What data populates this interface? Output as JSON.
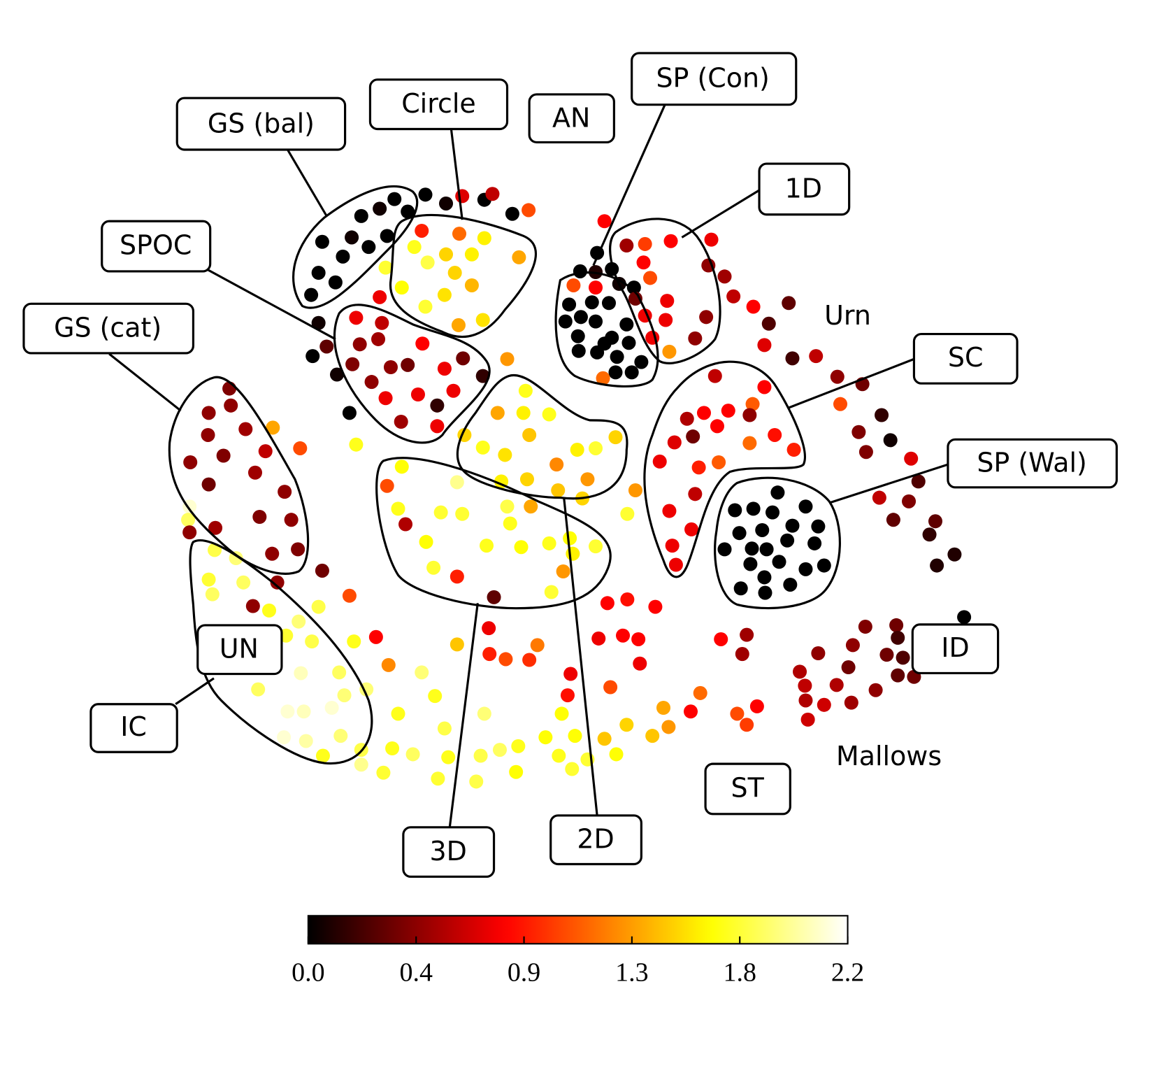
{
  "chart_data": {
    "type": "scatter",
    "colormap": "hot",
    "xlim": [
      20,
      135
    ],
    "ylim": [
      112,
      22
    ],
    "annotations": [
      "GS (bal)",
      "Circle",
      "AN",
      "SP (Con)",
      "1D",
      "SPOC",
      "GS (cat)",
      "Urn",
      "SC",
      "SP (Wal)",
      "ID",
      "UN",
      "IC",
      "Mallows",
      "ST",
      "3D",
      "2D"
    ],
    "colorbar": {
      "lim": [
        0,
        2.2
      ],
      "ticks": [
        {
          "value": 0,
          "label": "0.0"
        },
        {
          "value": 0.44,
          "label": "0.4"
        },
        {
          "value": 0.88,
          "label": "0.9"
        },
        {
          "value": 1.32,
          "label": "1.3"
        },
        {
          "value": 1.76,
          "label": "1.8"
        },
        2.2
      ]
    },
    "x": [
      53.5,
      51.5,
      49.0,
      55.3,
      52.5,
      47.7,
      43.7,
      50.0,
      46.5,
      43.2,
      45.5,
      42.2,
      57.7,
      60.5,
      65.7,
      69.5,
      62.7,
      66.8,
      71.7,
      57.2,
      62.3,
      65.7,
      56.2,
      60.5,
      64.0,
      70.4,
      58.0,
      61.7,
      54.5,
      60.3,
      64.0,
      57.7,
      62.2,
      65.5,
      52.3,
      51.5,
      43.2,
      44.3,
      42.4,
      45.7,
      47.4,
      48.3,
      51.8,
      48.8,
      51.3,
      57.3,
      47.8,
      53.0,
      55.3,
      60.3,
      62.8,
      50.4,
      52.3,
      56.7,
      59.3,
      61.5,
      54.4,
      59.3,
      65.5,
      68.8,
      71.3,
      67.5,
      71.0,
      74.5,
      63.0,
      65.5,
      68.5,
      71.8,
      78.3,
      80.8,
      83.5,
      75.5,
      79.7,
      71.5,
      75.7,
      79.0,
      68.0,
      48.3,
      54.5,
      62.0,
      52.5,
      54.0,
      59.8,
      62.7,
      68.8,
      72.0,
      55.0,
      69.2,
      57.8,
      66.0,
      70.7,
      74.5,
      77.3,
      80.8,
      77.7,
      58.8,
      62.0,
      67.0,
      74.8,
      76.4,
      86.2,
      85.1,
      31.1,
      31.3,
      28.3,
      37.0,
      33.3,
      28.2,
      40.7,
      30.3,
      25.8,
      36.0,
      34.6,
      28.3,
      38.6,
      35.2,
      39.5,
      29.2,
      36.9,
      40.4,
      25.7,
      25.5,
      25.7,
      43.7,
      37.6,
      29.1,
      32.0,
      28.3,
      33.0,
      28.8,
      36.5,
      34.3,
      38.8,
      40.5,
      43.2,
      47.4,
      42.3,
      48.0,
      51.0,
      40.8,
      46.0,
      46.7,
      49.7,
      35.0,
      39.0,
      41.2,
      45.0,
      38.5,
      41.5,
      46.2,
      43.8,
      49.0,
      49.0,
      52.7,
      57.2,
      59.0,
      54.0,
      62.0,
      65.7,
      60.3,
      53.2,
      56.0,
      52.0,
      59.4,
      60.8,
      64.6,
      65.2,
      67.8,
      70.3,
      70.0,
      74.0,
      75.8,
      77.6,
      78.0,
      79.7,
      82.0,
      83.6,
      85.0,
      88.5,
      76.2,
      90.0,
      90.7,
      95.0,
      93.7,
      100.0,
      102.7,
      101.3,
      66.3,
      66.4,
      68.6,
      71.8,
      72.9,
      77.4,
      77.0,
      82.8,
      81.2,
      84.5,
      86.6,
      86.8,
      82.4,
      85.1,
      88.9,
      97.8,
      101.3,
      100.7,
      108.5,
      111.0,
      109.2,
      109.3,
      109.6,
      111.8,
      113.5,
      115.7,
      115.1,
      115.5,
      117.4,
      118.8,
      120.3,
      121.6,
      121.8,
      122.5,
      121.8,
      124.0,
      130.8,
      81.0,
      78.7,
      80.8,
      83.0,
      77.8,
      80.8,
      84.0,
      86.0,
      77.2,
      80.3,
      82.6,
      78.8,
      76.7,
      80.8,
      85.0,
      83.0,
      78.4,
      82.0,
      85.3,
      78.5,
      81.0,
      83.7,
      87.0,
      83.5,
      85.7,
      81.8,
      82.0,
      85.0,
      87.5,
      91.0,
      87.3,
      88.2,
      86.2,
      90.5,
      87.5,
      90.3,
      88.5,
      90.8,
      94.3,
      95.8,
      96.1,
      96.5,
      98.3,
      99.5,
      102.2,
      104.3,
      107.0,
      103.7,
      107.5,
      110.7,
      113.6,
      117.0,
      114.0,
      119.6,
      116.5,
      120.8,
      117.5,
      123.6,
      124.6,
      119.3,
      123.3,
      121.2,
      126.9,
      126.1,
      129.5,
      127.1,
      97.0,
      103.7,
      102.1,
      98.8,
      95.5,
      101.7,
      93.2,
      97.3,
      105.1,
      101.7,
      94.0,
      91.5,
      107.7,
      94.8,
      97.5,
      89.5,
      94.3,
      90.8,
      93.8,
      91.2,
      91.7,
      105.5,
      99.7,
      102.2,
      104.8,
      109.3,
      107.5,
      100.3,
      103.4,
      111.0,
      106.8,
      98.3,
      102.0,
      104.0,
      110.5,
      101.8,
      105.7,
      109.3,
      111.8,
      100.5,
      103.7,
      103.8,
      107.2
    ],
    "y": [
      27.0,
      28.3,
      29.3,
      28.7,
      32.0,
      32.2,
      32.8,
      33.5,
      34.8,
      37.0,
      38.3,
      40.0,
      26.4,
      27.6,
      27.1,
      29.0,
      26.6,
      26.3,
      28.5,
      31.3,
      31.7,
      32.3,
      33.5,
      34.5,
      34.5,
      34.9,
      35.6,
      37.0,
      39.0,
      40.0,
      38.7,
      41.6,
      44.1,
      43.4,
      36.3,
      40.3,
      43.8,
      47.0,
      48.3,
      50.8,
      56.0,
      43.1,
      43.8,
      46.7,
      46.0,
      46.6,
      49.4,
      49.8,
      49.5,
      50.0,
      48.6,
      51.8,
      54.0,
      53.5,
      55.0,
      53.0,
      57.2,
      57.8,
      51.0,
      48.7,
      53.0,
      56.0,
      56.0,
      56.2,
      59.0,
      60.7,
      61.7,
      59.0,
      61.0,
      60.8,
      59.3,
      63.0,
      65.0,
      65.0,
      66.5,
      67.6,
      65.3,
      60.3,
      63.3,
      65.4,
      65.9,
      69.0,
      69.5,
      69.7,
      68.7,
      68.7,
      71.1,
      71.0,
      73.5,
      74.0,
      74.2,
      73.7,
      73.0,
      74.1,
      75.1,
      77.0,
      78.2,
      81.0,
      80.3,
      77.5,
      66.5,
      69.7,
      52.7,
      55.0,
      56.0,
      58.0,
      58.2,
      59.0,
      60.8,
      61.8,
      62.7,
      61.2,
      64.1,
      65.7,
      66.7,
      70.1,
      70.5,
      71.6,
      75.1,
      74.5,
      68.7,
      70.5,
      72.2,
      77.4,
      79.0,
      74.6,
      75.7,
      78.6,
      79.0,
      80.6,
      82.8,
      82.2,
      86.2,
      84.3,
      82.3,
      80.8,
      87.0,
      87.0,
      86.4,
      91.3,
      91.2,
      94.3,
      93.5,
      93.5,
      96.5,
      96.5,
      96.0,
      100.0,
      100.5,
      99.8,
      102.5,
      101.7,
      103.7,
      90.2,
      91.2,
      94.4,
      96.8,
      87.4,
      96.8,
      98.8,
      101.5,
      102.3,
      104.8,
      105.6,
      102.7,
      106.0,
      102.5,
      101.7,
      101.2,
      104.7,
      100.0,
      102.5,
      104.3,
      99.8,
      103.0,
      100.2,
      102.3,
      98.3,
      99.8,
      96.8,
      96.0,
      98.6,
      94.0,
      96.5,
      96.8,
      95.8,
      98.3,
      85.2,
      88.7,
      89.4,
      89.5,
      87.5,
      91.4,
      94.3,
      93.2,
      86.6,
      86.2,
      86.7,
      90.0,
      81.8,
      81.3,
      82.3,
      86.7,
      86.1,
      88.7,
      91.1,
      88.6,
      93.0,
      95.0,
      97.6,
      95.6,
      92.9,
      87.5,
      90.5,
      95.3,
      85.0,
      93.6,
      88.8,
      84.8,
      86.5,
      89.2,
      91.6,
      91.8,
      83.7,
      34.3,
      36.8,
      36.9,
      36.5,
      38.7,
      39.0,
      38.5,
      39.0,
      41.3,
      41.0,
      41.1,
      43.0,
      43.6,
      43.6,
      44.0,
      45.8,
      45.6,
      46.6,
      46.5,
      47.6,
      47.8,
      48.4,
      49.1,
      50.5,
      50.5,
      51.3,
      30.0,
      33.3,
      33.1,
      32.7,
      35.6,
      37.7,
      40.5,
      40.8,
      42.8,
      43.4,
      45.8,
      47.7,
      45.9,
      43.0,
      36.0,
      32.5,
      37.5,
      40.2,
      41.6,
      43.9,
      41.1,
      46.8,
      48.6,
      48.3,
      51.1,
      52.1,
      54.8,
      56.3,
      58.6,
      59.7,
      61.3,
      62.2,
      65.3,
      67.5,
      68.0,
      70.5,
      70.7,
      72.5,
      75.2,
      76.7,
      51.0,
      52.5,
      54.8,
      55.7,
      56.0,
      56.3,
      56.8,
      57.8,
      59.0,
      60.1,
      59.2,
      60.0,
      61.0,
      63.4,
      62.7,
      62.6,
      67.0,
      69.3,
      71.8,
      74.0,
      76.6,
      66.8,
      69.2,
      69.0,
      69.5,
      68.7,
      71.3,
      72.3,
      71.9,
      71.4,
      73.3,
      74.5,
      74.4,
      74.5,
      73.7,
      76.5,
      76.2,
      77.2,
      76.7,
      79.8,
      78.3,
      80.4,
      79.3
    ],
    "values": [
      0,
      0.05,
      0,
      0,
      0,
      0.05,
      0,
      0,
      0,
      0,
      0,
      0,
      0,
      0.05,
      0,
      0,
      0.7,
      0.6,
      1.05,
      0.9,
      1.15,
      1.6,
      1.7,
      1.5,
      1.6,
      1.35,
      1.8,
      1.5,
      1.65,
      1.55,
      1.4,
      1.75,
      1.35,
      1.55,
      1.75,
      0.75,
      0.05,
      0.3,
      0,
      0.05,
      0,
      0.75,
      0.6,
      0.45,
      0.5,
      0.8,
      0.4,
      0.45,
      0.35,
      0.75,
      0.35,
      0.45,
      0.75,
      0.75,
      0.15,
      0.75,
      0.5,
      0.75,
      0.15,
      1.3,
      1.7,
      1.35,
      1.6,
      1.7,
      1.5,
      1.7,
      1.55,
      1.45,
      1.6,
      1.75,
      1.5,
      1.25,
      1.3,
      1.5,
      1.45,
      1.5,
      1.6,
      1.7,
      1.65,
      1.95,
      1.05,
      1.7,
      1.75,
      1.75,
      1.8,
      1.35,
      0.55,
      1.7,
      1.65,
      1.7,
      1.65,
      1.7,
      1.65,
      1.75,
      1.6,
      1.75,
      0.9,
      0.3,
      1.75,
      1.3,
      1.3,
      1.75,
      0.4,
      0.45,
      0.45,
      1.35,
      0.5,
      0.45,
      1.05,
      0.4,
      0.45,
      0.6,
      0.5,
      0.35,
      0.45,
      0.4,
      0.45,
      0.5,
      0.45,
      0.4,
      2.1,
      1.85,
      0.45,
      0.35,
      0.45,
      1.8,
      1.9,
      1.75,
      1.85,
      1.85,
      1.7,
      0.45,
      1.75,
      1.9,
      1.8,
      1.05,
      1.8,
      1.7,
      0.8,
      2.05,
      1.85,
      1.9,
      1.9,
      1.85,
      2.1,
      2.05,
      2.1,
      2.1,
      2.0,
      1.9,
      1.7,
      1.8,
      1.95,
      1.25,
      1.9,
      1.7,
      1.7,
      1.45,
      1.9,
      1.8,
      1.7,
      1.85,
      1.75,
      1.75,
      1.7,
      1.8,
      1.8,
      1.85,
      1.7,
      1.65,
      1.65,
      1.7,
      1.75,
      1.65,
      1.75,
      1.45,
      1.65,
      1.5,
      1.45,
      1.65,
      1.35,
      1.3,
      1.15,
      0.8,
      1.05,
      0.8,
      1.0,
      0.75,
      0.9,
      1.05,
      0.95,
      1.2,
      0.75,
      0.85,
      1.05,
      0.75,
      0.8,
      0.8,
      0.75,
      0.8,
      0.85,
      0.8,
      0.8,
      0.5,
      0.5,
      0.55,
      0.45,
      0.6,
      0.55,
      0.65,
      0.65,
      0.55,
      0.45,
      0.35,
      0.5,
      0.4,
      0.45,
      0.35,
      0.35,
      0.2,
      0.25,
      0.3,
      0.35,
      0,
      0,
      0,
      0.1,
      0,
      1.05,
      0.8,
      0.05,
      0,
      0,
      0,
      0,
      0,
      0,
      0,
      0,
      0,
      0,
      0,
      0,
      0,
      0,
      0,
      0,
      0,
      0,
      1.15,
      0.8,
      0.5,
      1.0,
      0.8,
      0.8,
      1.05,
      0.35,
      0.75,
      0.75,
      0.75,
      0.75,
      1.3,
      0.45,
      0.45,
      0.45,
      0.75,
      0.5,
      0.6,
      0.8,
      0.25,
      0.3,
      0.7,
      0.2,
      0.6,
      0.45,
      0.35,
      1.05,
      0.15,
      0.4,
      0.05,
      0.4,
      0.7,
      0.25,
      0.6,
      0.4,
      0.3,
      0.3,
      0.15,
      0.1,
      0.1,
      0.6,
      0.8,
      1.1,
      0.8,
      0.8,
      0.45,
      0.55,
      0.8,
      0.85,
      1.15,
      0.35,
      0.7,
      0.9,
      0.9,
      1.1,
      0.75,
      0.6,
      0.75,
      0.75,
      0.75,
      0.75,
      0,
      0,
      0,
      0,
      0,
      0,
      0,
      0,
      0,
      0,
      0,
      0,
      0,
      0,
      0,
      0,
      0,
      0,
      0,
      0,
      0,
      0
    ]
  }
}
